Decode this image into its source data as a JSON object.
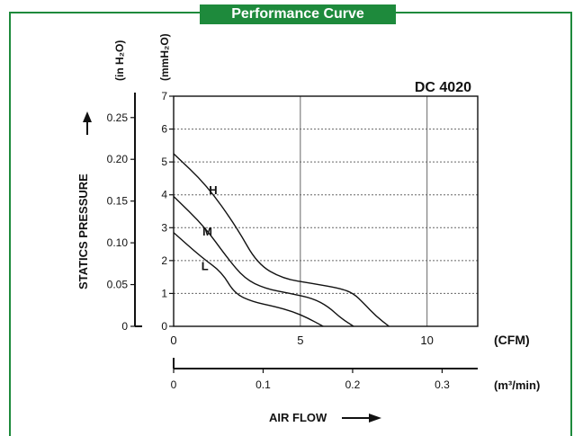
{
  "page": {
    "title": "Performance Curve"
  },
  "chart_data": {
    "type": "line",
    "title": "Performance Curve",
    "model_label": "DC 4020",
    "xlabel": "AIR FLOW",
    "ylabel": "STATICS PRESSURE",
    "x_unit_primary": "(CFM)",
    "x_unit_secondary": "(m³/min)",
    "y_unit_left": "(in H₂O)",
    "y_unit_right": "(mmH₂O)",
    "xlim": [
      0,
      12
    ],
    "ylim": [
      0,
      7
    ],
    "x_ticks": [
      0,
      5,
      10
    ],
    "y_ticks": [
      0,
      1,
      2,
      3,
      4,
      5,
      6,
      7
    ],
    "x2_ticks": [
      "0",
      "0.1",
      "0.2",
      "0.3"
    ],
    "x2_tick_values": [
      0,
      0.1,
      0.2,
      0.3
    ],
    "y2_ticks": [
      "0",
      "0.05",
      "0.10",
      "0.15",
      "0.20",
      "0.25"
    ],
    "y2_tick_values": [
      0,
      0.05,
      0.1,
      0.15,
      0.2,
      0.25
    ],
    "grid": true,
    "series": [
      {
        "name": "H",
        "x": [
          0,
          1.3,
          2.5,
          3.3,
          4.3,
          5.5,
          6.6,
          7.1,
          7.5,
          8.0,
          8.5
        ],
        "y": [
          5.25,
          4.3,
          3.0,
          1.9,
          1.45,
          1.3,
          1.15,
          1.0,
          0.7,
          0.3,
          0.0
        ]
      },
      {
        "name": "M",
        "x": [
          0,
          1.2,
          2.1,
          2.8,
          3.6,
          4.6,
          5.5,
          6.1,
          6.6,
          7.1
        ],
        "y": [
          3.95,
          3.05,
          2.1,
          1.45,
          1.15,
          1.0,
          0.85,
          0.6,
          0.25,
          0.0
        ]
      },
      {
        "name": "L",
        "x": [
          0,
          1.1,
          1.9,
          2.4,
          3.1,
          4.0,
          4.7,
          5.3,
          5.9
        ],
        "y": [
          2.85,
          2.1,
          1.65,
          1.0,
          0.75,
          0.6,
          0.45,
          0.25,
          0.0
        ]
      }
    ]
  }
}
